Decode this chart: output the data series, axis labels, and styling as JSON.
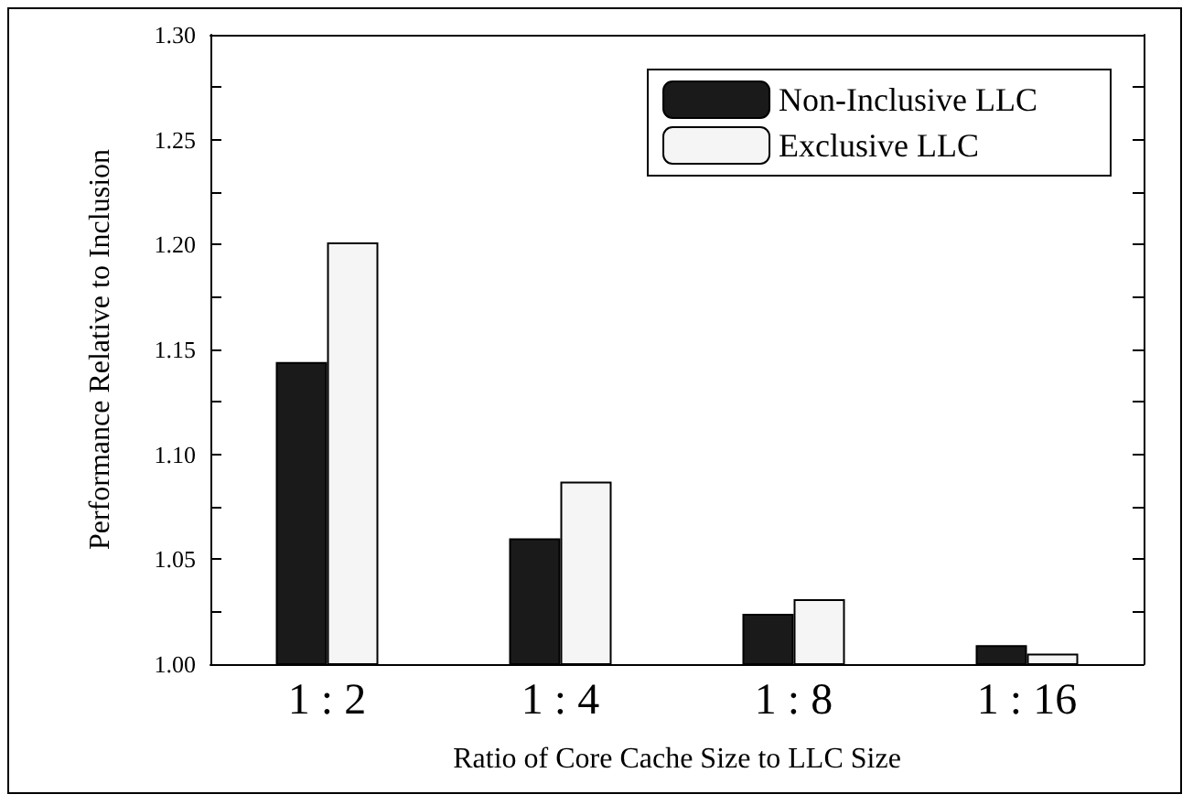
{
  "chart_data": {
    "type": "bar",
    "xlabel": "Ratio of Core Cache Size to LLC Size",
    "ylabel": "Performance Relative to Inclusion",
    "categories": [
      "1 : 2",
      "1 : 4",
      "1 : 8",
      "1 : 16"
    ],
    "series": [
      {
        "name": "Non-Inclusive LLC",
        "color": "#1a1a1a",
        "values": [
          1.144,
          1.06,
          1.024,
          1.009
        ]
      },
      {
        "name": "Exclusive LLC",
        "color": "#f5f5f5",
        "values": [
          1.201,
          1.087,
          1.031,
          1.005
        ]
      }
    ],
    "ylim": [
      1.0,
      1.3
    ],
    "yticks": [
      {
        "value": 1.0,
        "label": "1.00"
      },
      {
        "value": 1.025,
        "label": null
      },
      {
        "value": 1.05,
        "label": "1.05"
      },
      {
        "value": 1.075,
        "label": null
      },
      {
        "value": 1.1,
        "label": "1.10"
      },
      {
        "value": 1.125,
        "label": null
      },
      {
        "value": 1.15,
        "label": "1.15"
      },
      {
        "value": 1.175,
        "label": null
      },
      {
        "value": 1.2,
        "label": "1.20"
      },
      {
        "value": 1.225,
        "label": null
      },
      {
        "value": 1.25,
        "label": "1.25"
      },
      {
        "value": 1.275,
        "label": null
      },
      {
        "value": 1.3,
        "label": "1.30"
      }
    ],
    "grid": false,
    "legend": "top right"
  }
}
